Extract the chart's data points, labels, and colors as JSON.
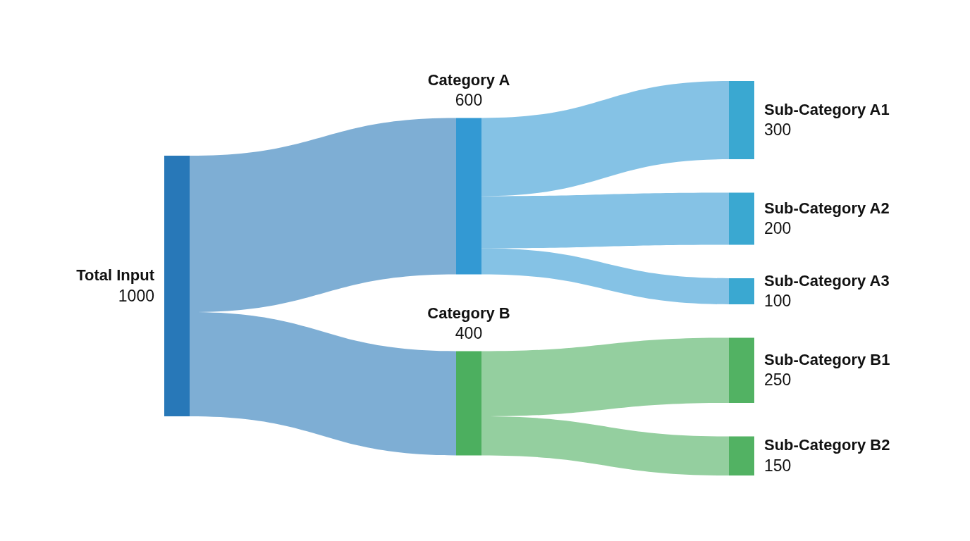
{
  "chart_data": {
    "type": "other",
    "categories": [
      "Total Input",
      "Category A",
      "Category B",
      "Sub-Category A1",
      "Sub-Category A2",
      "Sub-Category A3",
      "Sub-Category B1",
      "Sub-Category B2"
    ],
    "colors": [
      "#2878b8",
      "#3399d3",
      "#4caf5f",
      "#3aa8d1",
      "#3aa8d1",
      "#3aa8d1",
      "#52b263",
      "#52b263"
    ],
    "series": [
      {
        "values": [
          1000,
          null,
          null,
          null,
          null,
          null,
          null,
          null
        ]
      },
      {
        "values": [
          null,
          600,
          400,
          null,
          null,
          null,
          null,
          null
        ]
      },
      {
        "values": [
          null,
          null,
          null,
          300,
          200,
          100,
          250,
          150
        ]
      }
    ],
    "data_labels": true
  }
}
